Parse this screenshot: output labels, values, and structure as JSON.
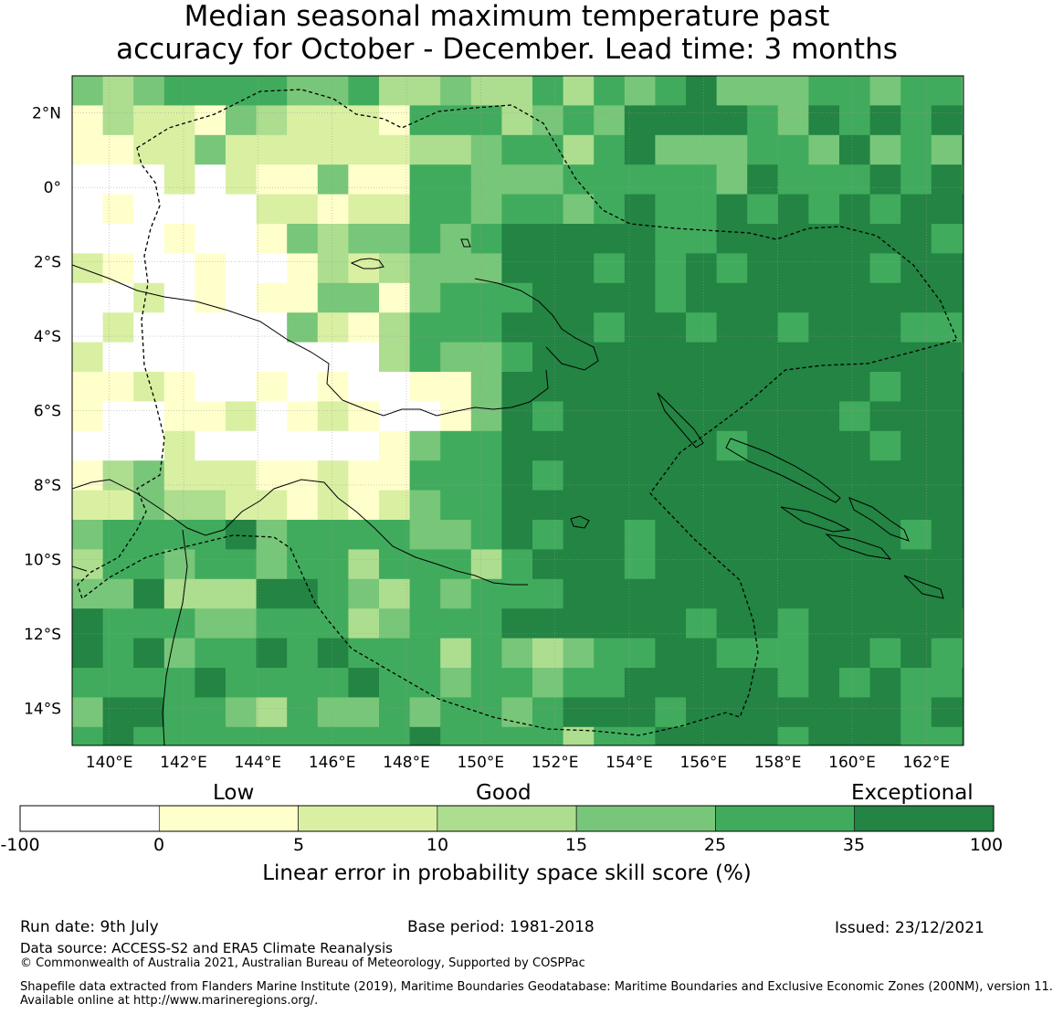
{
  "title": {
    "line1": "Median seasonal maximum temperature past",
    "line2": "accuracy for October - December. Lead time: 3 months"
  },
  "map": {
    "lon_range": [
      139,
      163
    ],
    "lat_range": [
      -15,
      3
    ],
    "lon_ticks": [
      {
        "value": 140,
        "label": "140°E"
      },
      {
        "value": 142,
        "label": "142°E"
      },
      {
        "value": 144,
        "label": "144°E"
      },
      {
        "value": 146,
        "label": "146°E"
      },
      {
        "value": 148,
        "label": "148°E"
      },
      {
        "value": 150,
        "label": "150°E"
      },
      {
        "value": 152,
        "label": "152°E"
      },
      {
        "value": 154,
        "label": "154°E"
      },
      {
        "value": 156,
        "label": "156°E"
      },
      {
        "value": 158,
        "label": "158°E"
      },
      {
        "value": 160,
        "label": "160°E"
      },
      {
        "value": 162,
        "label": "162°E"
      }
    ],
    "lat_ticks": [
      {
        "value": 2,
        "label": "2°N"
      },
      {
        "value": 0,
        "label": "0°"
      },
      {
        "value": -2,
        "label": "2°S"
      },
      {
        "value": -4,
        "label": "4°S"
      },
      {
        "value": -6,
        "label": "6°S"
      },
      {
        "value": -8,
        "label": "8°S"
      },
      {
        "value": -10,
        "label": "10°S"
      },
      {
        "value": -12,
        "label": "12°S"
      },
      {
        "value": -14,
        "label": "14°S"
      }
    ],
    "grid_resolution_deg": 0.8
  },
  "colorbar": {
    "category_labels": [
      "Low",
      "Good",
      "Exceptional"
    ],
    "bins": [
      {
        "from": -100,
        "to": 0,
        "color": "#ffffff"
      },
      {
        "from": 0,
        "to": 5,
        "color": "#ffffcc"
      },
      {
        "from": 5,
        "to": 10,
        "color": "#d9f0a3"
      },
      {
        "from": 10,
        "to": 15,
        "color": "#addd8e"
      },
      {
        "from": 15,
        "to": 25,
        "color": "#78c679"
      },
      {
        "from": 25,
        "to": 35,
        "color": "#41ab5d"
      },
      {
        "from": 35,
        "to": 100,
        "color": "#238443"
      }
    ],
    "tick_labels": [
      "-100",
      "0",
      "5",
      "10",
      "15",
      "25",
      "35",
      "100"
    ],
    "title": "Linear error in probability space skill score (%)"
  },
  "footer": {
    "run_date": "Run date: 9th July",
    "base_period": "Base period: 1981-2018",
    "issued": "Issued: 23/12/2021",
    "data_source": "Data source: ACCESS-S2 and ERA5 Climate Reanalysis",
    "copyright": "© Commonwealth of Australia 2021, Australian Bureau of Meteorology, Supported by COSPPac",
    "shapefile_line1": "Shapefile data extracted from Flanders Marine Institute (2019), Maritime Boundaries Geodatabase: Maritime Boundaries and Exclusive Economic Zones (200NM), version 11.",
    "shapefile_line2": "Available online at http://www.marineregions.org/."
  }
}
